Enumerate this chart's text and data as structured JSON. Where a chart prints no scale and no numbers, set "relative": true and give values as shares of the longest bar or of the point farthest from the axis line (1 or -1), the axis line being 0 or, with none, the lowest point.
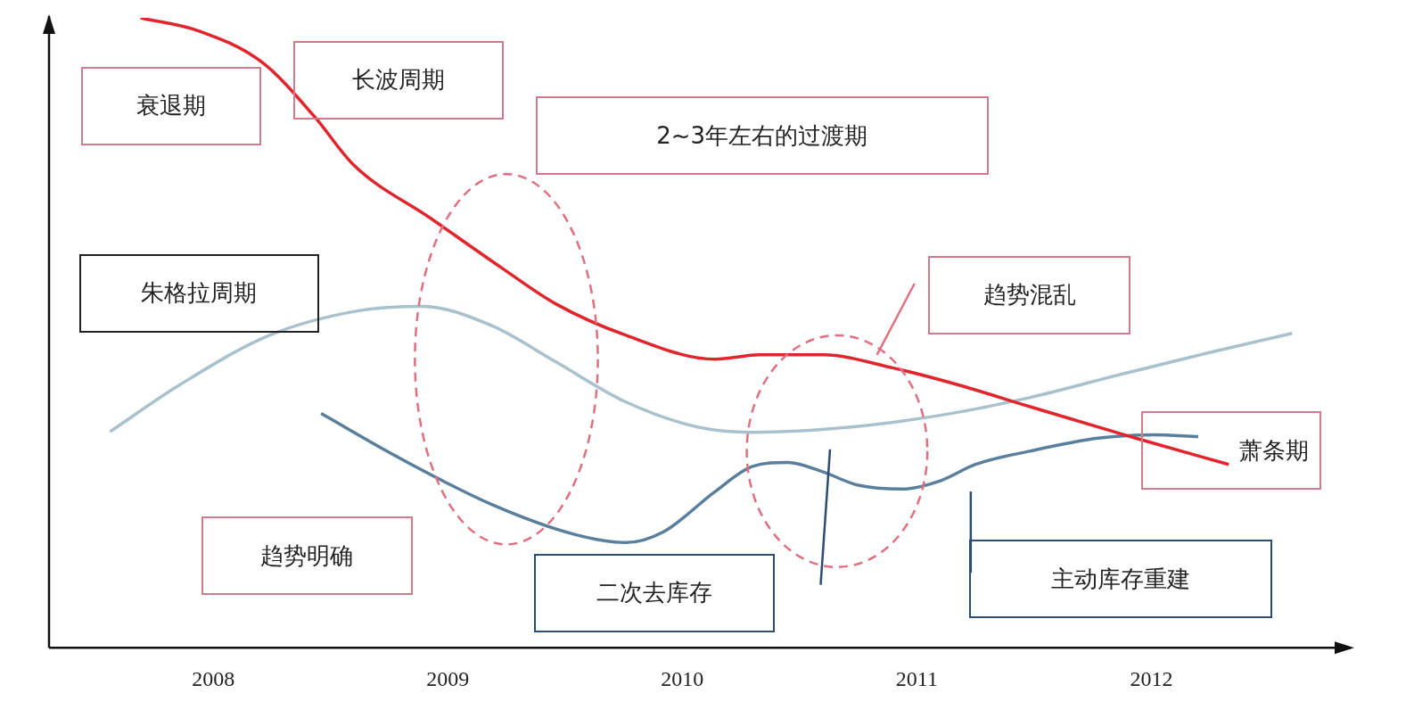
{
  "chart_data": {
    "type": "line",
    "relative": true,
    "xlim": [
      2007.3,
      2012.85
    ],
    "xticks": [
      2008,
      2009,
      2010,
      2011,
      2012
    ],
    "grid": false,
    "legend": false,
    "marker": "none",
    "line_style": "solid",
    "series": [
      {
        "color": "#e0262c",
        "x": [
          2007.69,
          2007.94,
          2008.21,
          2008.43,
          2008.6,
          2008.93,
          2009.23,
          2009.46,
          2009.76,
          2010.14,
          2010.33,
          2010.6,
          2010.9,
          2011.17,
          2011.48,
          2011.93,
          2012.33
        ],
        "values": [
          1.0,
          0.979,
          0.929,
          0.844,
          0.766,
          0.681,
          0.603,
          0.546,
          0.496,
          0.458,
          0.465,
          0.465,
          0.444,
          0.418,
          0.383,
          0.333,
          0.291
        ]
      },
      {
        "color": "#a9c1cd",
        "x": [
          2007.56,
          2007.86,
          2008.24,
          2008.62,
          2008.89,
          2009.19,
          2009.46,
          2009.76,
          2010.07,
          2010.3,
          2010.71,
          2011.1,
          2011.48,
          2011.86,
          2012.24,
          2012.6
        ],
        "values": [
          0.343,
          0.418,
          0.496,
          0.535,
          0.542,
          0.511,
          0.454,
          0.39,
          0.35,
          0.342,
          0.35,
          0.369,
          0.397,
          0.433,
          0.468,
          0.499
        ]
      },
      {
        "color": "#5a7f9c",
        "x": [
          2008.46,
          2008.81,
          2009.19,
          2009.54,
          2009.76,
          2009.92,
          2010.14,
          2010.3,
          2010.45,
          2010.6,
          2010.75,
          2010.94,
          2011.1,
          2011.25,
          2011.48,
          2011.78,
          2012.01,
          2012.2
        ],
        "values": [
          0.372,
          0.298,
          0.227,
          0.18,
          0.167,
          0.184,
          0.248,
          0.288,
          0.294,
          0.279,
          0.258,
          0.252,
          0.265,
          0.291,
          0.312,
          0.333,
          0.338,
          0.335
        ]
      }
    ],
    "annotations": [
      "衰退期",
      "长波周期",
      "2~3年左右的过渡期",
      "朱格拉周期",
      "趋势混乱",
      "萧条期",
      "趋势明确",
      "二次去库存",
      "主动库存重建"
    ]
  }
}
